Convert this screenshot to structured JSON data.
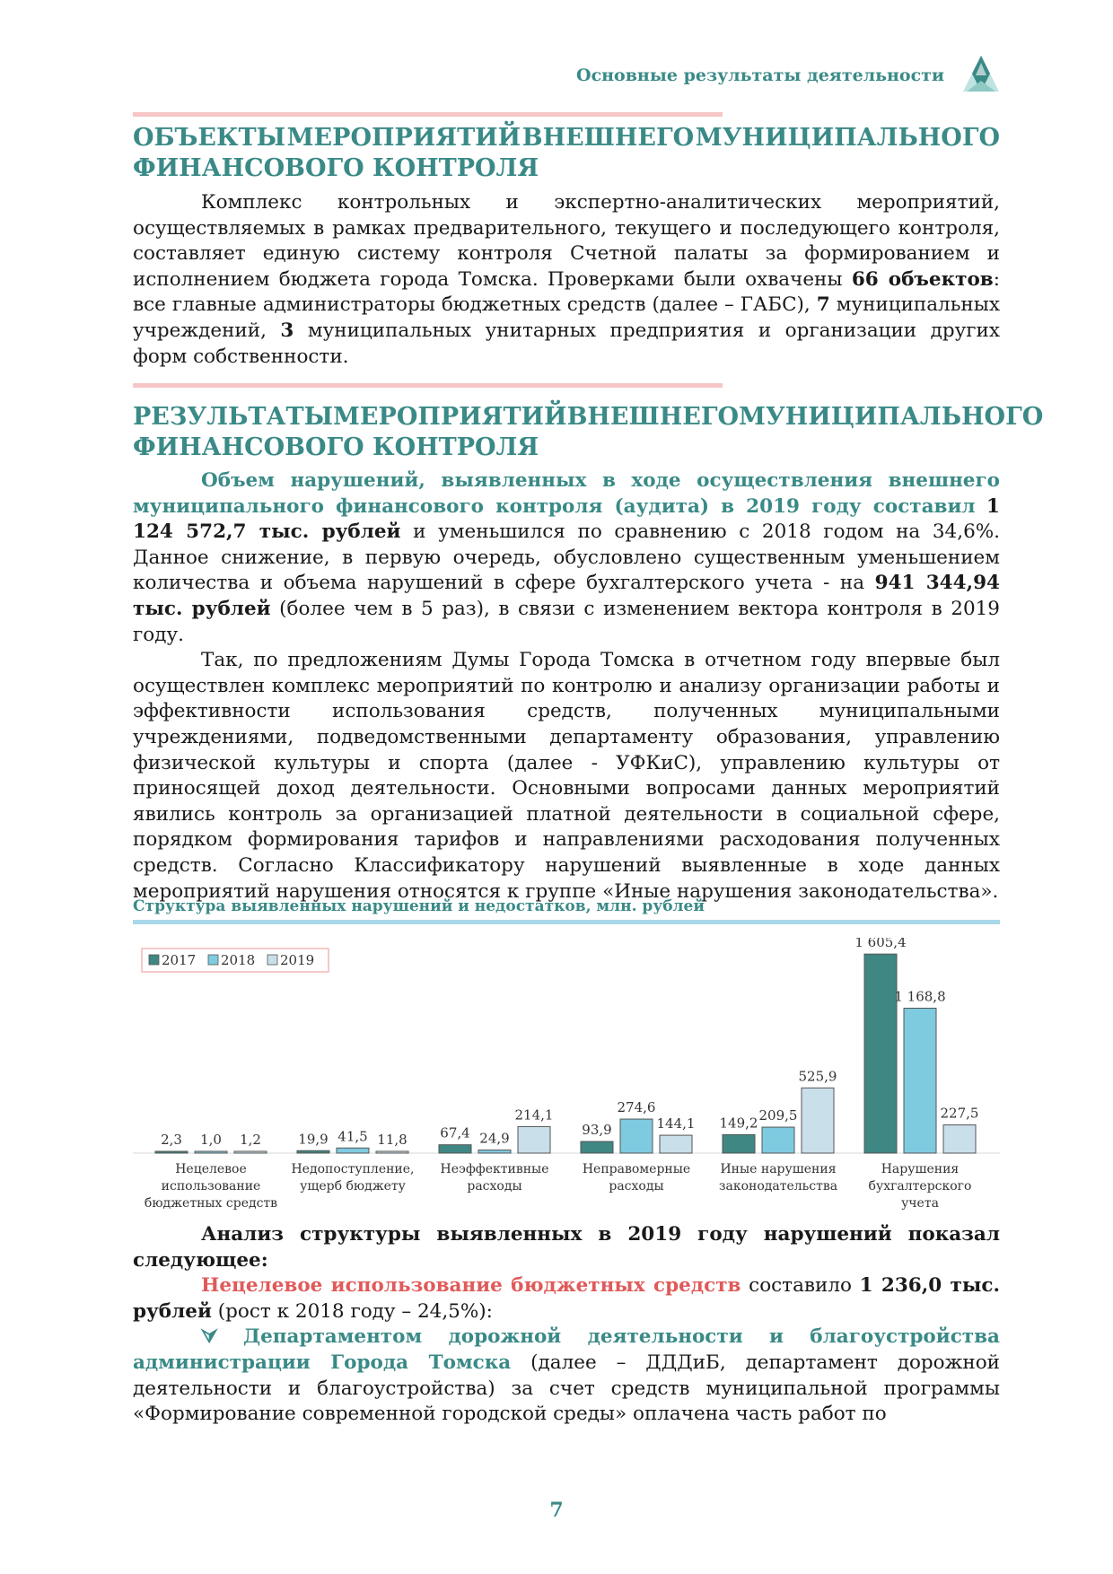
{
  "header": {
    "title": "Основные результаты деятельности"
  },
  "section1": {
    "heading_words": [
      "ОБЪЕКТЫ",
      "МЕРОПРИЯТИЙ",
      "ВНЕШНЕГО",
      "МУНИЦИПАЛЬНОГО"
    ],
    "heading_line2": "ФИНАНСОВОГО КОНТРОЛЯ",
    "p1_a": "Комплекс контрольных и экспертно-аналитических мероприятий, осуществляемых в рамках предварительного, текущего и последующего контроля, составляет единую систему контроля Счетной палаты за формированием и исполнением бюджета города Томска. Проверками были охвачены ",
    "p1_b": "66 объектов",
    "p1_c": ": все главные администраторы бюджетных средств (далее – ГАБС), ",
    "p1_d": "7",
    "p1_e": " муниципальных учреждений, ",
    "p1_f": "3",
    "p1_g": " муниципальных унитарных предприятия и организации других форм собственности."
  },
  "section2": {
    "heading_words": [
      "РЕЗУЛЬТАТЫ",
      "МЕРОПРИЯТИЙ",
      "ВНЕШНЕГО",
      "МУНИЦИПАЛЬНОГО"
    ],
    "heading_line2": "ФИНАНСОВОГО КОНТРОЛЯ",
    "p1_a": "Объем нарушений, выявленных в ходе осуществления внешнего муниципального финансового контроля (аудита) в 2019 году составил",
    "p1_b": "1 124 572,7 тыс. рублей",
    "p1_c": " и уменьшился по сравнению с 2018 годом на 34,6%. Данное снижение, в первую очередь, обусловлено существенным уменьшением количества и объема нарушений в сфере бухгалтерского учета - на ",
    "p1_d": "941 344,94 тыс. рублей",
    "p1_e": " (более чем в 5 раз), в связи с изменением вектора контроля в 2019 году.",
    "p2": "Так, по предложениям Думы Города Томска в отчетном году впервые был осуществлен комплекс мероприятий по контролю и анализу организации работы и эффективности использования средств, полученных муниципальными учреждениями, подведомственными департаменту образования, управлению физической культуры и спорта (далее - УФКиС), управлению культуры от приносящей доход деятельности. Основными вопросами данных мероприятий явились контроль за организацией платной деятельности в социальной сфере, порядком формирования тарифов и направлениями расходования полученных средств. Согласно Классификатору нарушений выявленные в ходе данных мероприятий нарушения относятся к группе «Иные нарушения законодательства»."
  },
  "chart_caption": "Структура выявленных нарушений и недостатков, млн. рублей",
  "chart_data": {
    "type": "bar",
    "categories": [
      [
        "Нецелевое",
        "использование",
        "бюджетных средств"
      ],
      [
        "Недопоступление,",
        "ущерб бюджету"
      ],
      [
        "Неэффективные",
        "расходы"
      ],
      [
        "Неправомерные",
        "расходы"
      ],
      [
        "Иные нарушения",
        "законодательства"
      ],
      [
        "Нарушения",
        "бухгалтерского",
        "учета"
      ]
    ],
    "series": [
      {
        "name": "2017",
        "values": [
          2.3,
          19.9,
          67.4,
          93.9,
          149.2,
          1605.4
        ],
        "labels": [
          "2,3",
          "19,9",
          "67,4",
          "93,9",
          "149,2",
          "1 605,4"
        ],
        "color": "#3f8783"
      },
      {
        "name": "2018",
        "values": [
          1.0,
          41.5,
          24.9,
          274.6,
          209.5,
          1168.8
        ],
        "labels": [
          "1,0",
          "41,5",
          "24,9",
          "274,6",
          "209,5",
          "1 168,8"
        ],
        "color": "#7ecbe0"
      },
      {
        "name": "2019",
        "values": [
          1.2,
          11.8,
          214.1,
          144.1,
          525.9,
          227.5
        ],
        "labels": [
          "1,2",
          "11,8",
          "214,1",
          "144,1",
          "525,9",
          "227,5"
        ],
        "color": "#c9dfea"
      }
    ],
    "ylim": [
      0,
      1650
    ],
    "legend": "top-left",
    "grid": false
  },
  "section3": {
    "p1": "Анализ структуры выявленных в 2019 году нарушений показал следующее:",
    "p2_a": "Нецелевое использование бюджетных средств",
    "p2_b": " составило ",
    "p2_c": "1 236,0 тыс. рублей",
    "p2_d": " (рост к 2018 году – 24,5%):",
    "p3_arrow": "⮛",
    "p3_a": "Департаментом дорожной деятельности и благоустройства администрации Города Томска",
    "p3_b": " (далее – ДДДиБ, департамент дорожной деятельности и благоустройства) за счет средств муниципальной программы «Формирование современной городской среды» оплачена часть работ по"
  },
  "page_number": "7"
}
